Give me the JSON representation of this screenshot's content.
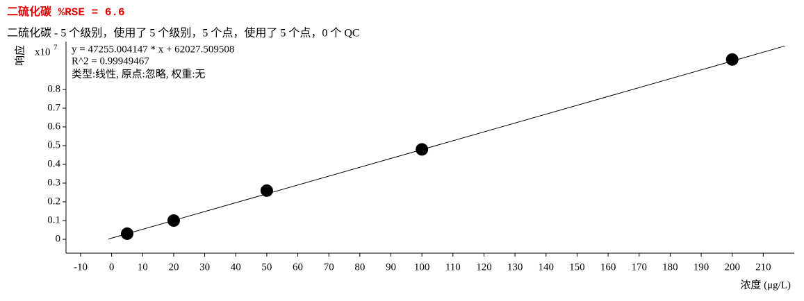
{
  "chart_data": {
    "type": "scatter",
    "title": "二硫化碳  %RSE = 6.6",
    "subtitle": "二硫化碳 - 5 个级别，使用了 5 个级别，5 个点，使用了 5 个点，0 个 QC",
    "annotations": [
      "y = 47255.004147 * x  + 62027.509508",
      "R^2 = 0.99949467",
      "类型:线性, 原点:忽略, 权重:无"
    ],
    "y_label": "响应",
    "y_multiplier": {
      "base": "x10",
      "exponent": "7"
    },
    "x_label": "浓度 (μg/L)",
    "x": [
      5,
      20,
      50,
      100,
      200
    ],
    "values": [
      0.03,
      0.1,
      0.26,
      0.48,
      0.96
    ],
    "color": "#000000",
    "fit_line": {
      "x": [
        -1,
        217
      ],
      "values": [
        0.0015,
        1.032
      ],
      "color": "#000000"
    },
    "xlim": [
      -14.7,
      220
    ],
    "xticks": [
      -10,
      0,
      10,
      20,
      30,
      40,
      50,
      60,
      70,
      80,
      90,
      100,
      110,
      120,
      130,
      140,
      150,
      160,
      170,
      180,
      190,
      200,
      210
    ],
    "ylim": [
      -0.074,
      1.048
    ],
    "yticks": [
      0,
      0.1,
      0.2,
      0.3,
      0.4,
      0.5,
      0.6,
      0.7,
      0.8
    ],
    "grid": false
  }
}
